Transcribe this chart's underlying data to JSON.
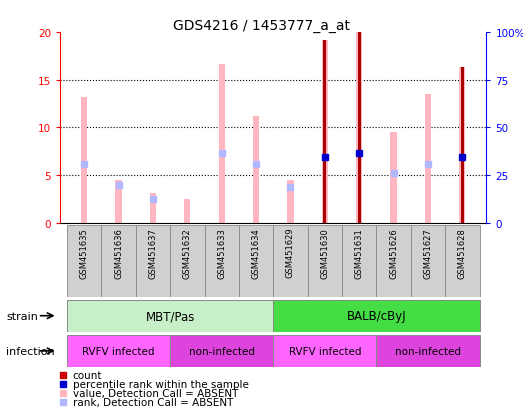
{
  "title": "GDS4216 / 1453777_a_at",
  "samples": [
    "GSM451635",
    "GSM451636",
    "GSM451637",
    "GSM451632",
    "GSM451633",
    "GSM451634",
    "GSM451629",
    "GSM451630",
    "GSM451631",
    "GSM451626",
    "GSM451627",
    "GSM451628"
  ],
  "value_absent": [
    13.2,
    4.5,
    3.1,
    2.5,
    16.7,
    11.2,
    4.5,
    19.2,
    20.0,
    9.5,
    13.5,
    16.3
  ],
  "rank_absent": [
    6.2,
    3.9,
    2.5,
    null,
    7.3,
    6.1,
    3.7,
    null,
    null,
    5.2,
    6.1,
    null
  ],
  "count_red": [
    null,
    null,
    null,
    null,
    null,
    null,
    null,
    19.2,
    20.0,
    null,
    null,
    16.3
  ],
  "percentile_blue": [
    null,
    null,
    null,
    null,
    null,
    null,
    null,
    6.9,
    7.3,
    null,
    null,
    6.9
  ],
  "ylim": [
    0,
    20
  ],
  "yticks": [
    0,
    5,
    10,
    15,
    20
  ],
  "y2ticks_labels": [
    "0",
    "25",
    "50",
    "75",
    "100%"
  ],
  "y2ticks_vals": [
    0,
    25,
    50,
    75,
    100
  ],
  "strain_groups": [
    {
      "label": "MBT/Pas",
      "start": 0,
      "end": 6,
      "color": "#c8f0c8"
    },
    {
      "label": "BALB/cByJ",
      "start": 6,
      "end": 12,
      "color": "#44dd44"
    }
  ],
  "infection_groups": [
    {
      "label": "RVFV infected",
      "start": 0,
      "end": 3,
      "color": "#ff66ff"
    },
    {
      "label": "non-infected",
      "start": 3,
      "end": 6,
      "color": "#dd44dd"
    },
    {
      "label": "RVFV infected",
      "start": 6,
      "end": 9,
      "color": "#ff66ff"
    },
    {
      "label": "non-infected",
      "start": 9,
      "end": 12,
      "color": "#dd44dd"
    }
  ],
  "color_value_absent": "#ffb6c1",
  "color_rank_absent": "#b0b8ff",
  "color_count": "#aa0000",
  "color_percentile": "#0000cc",
  "color_sample_box": "#d0d0d0",
  "legend_items": [
    {
      "label": "count",
      "color": "#cc0000"
    },
    {
      "label": "percentile rank within the sample",
      "color": "#0000cc"
    },
    {
      "label": "value, Detection Call = ABSENT",
      "color": "#ffb6c1"
    },
    {
      "label": "rank, Detection Call = ABSENT",
      "color": "#b0b8ff"
    }
  ]
}
